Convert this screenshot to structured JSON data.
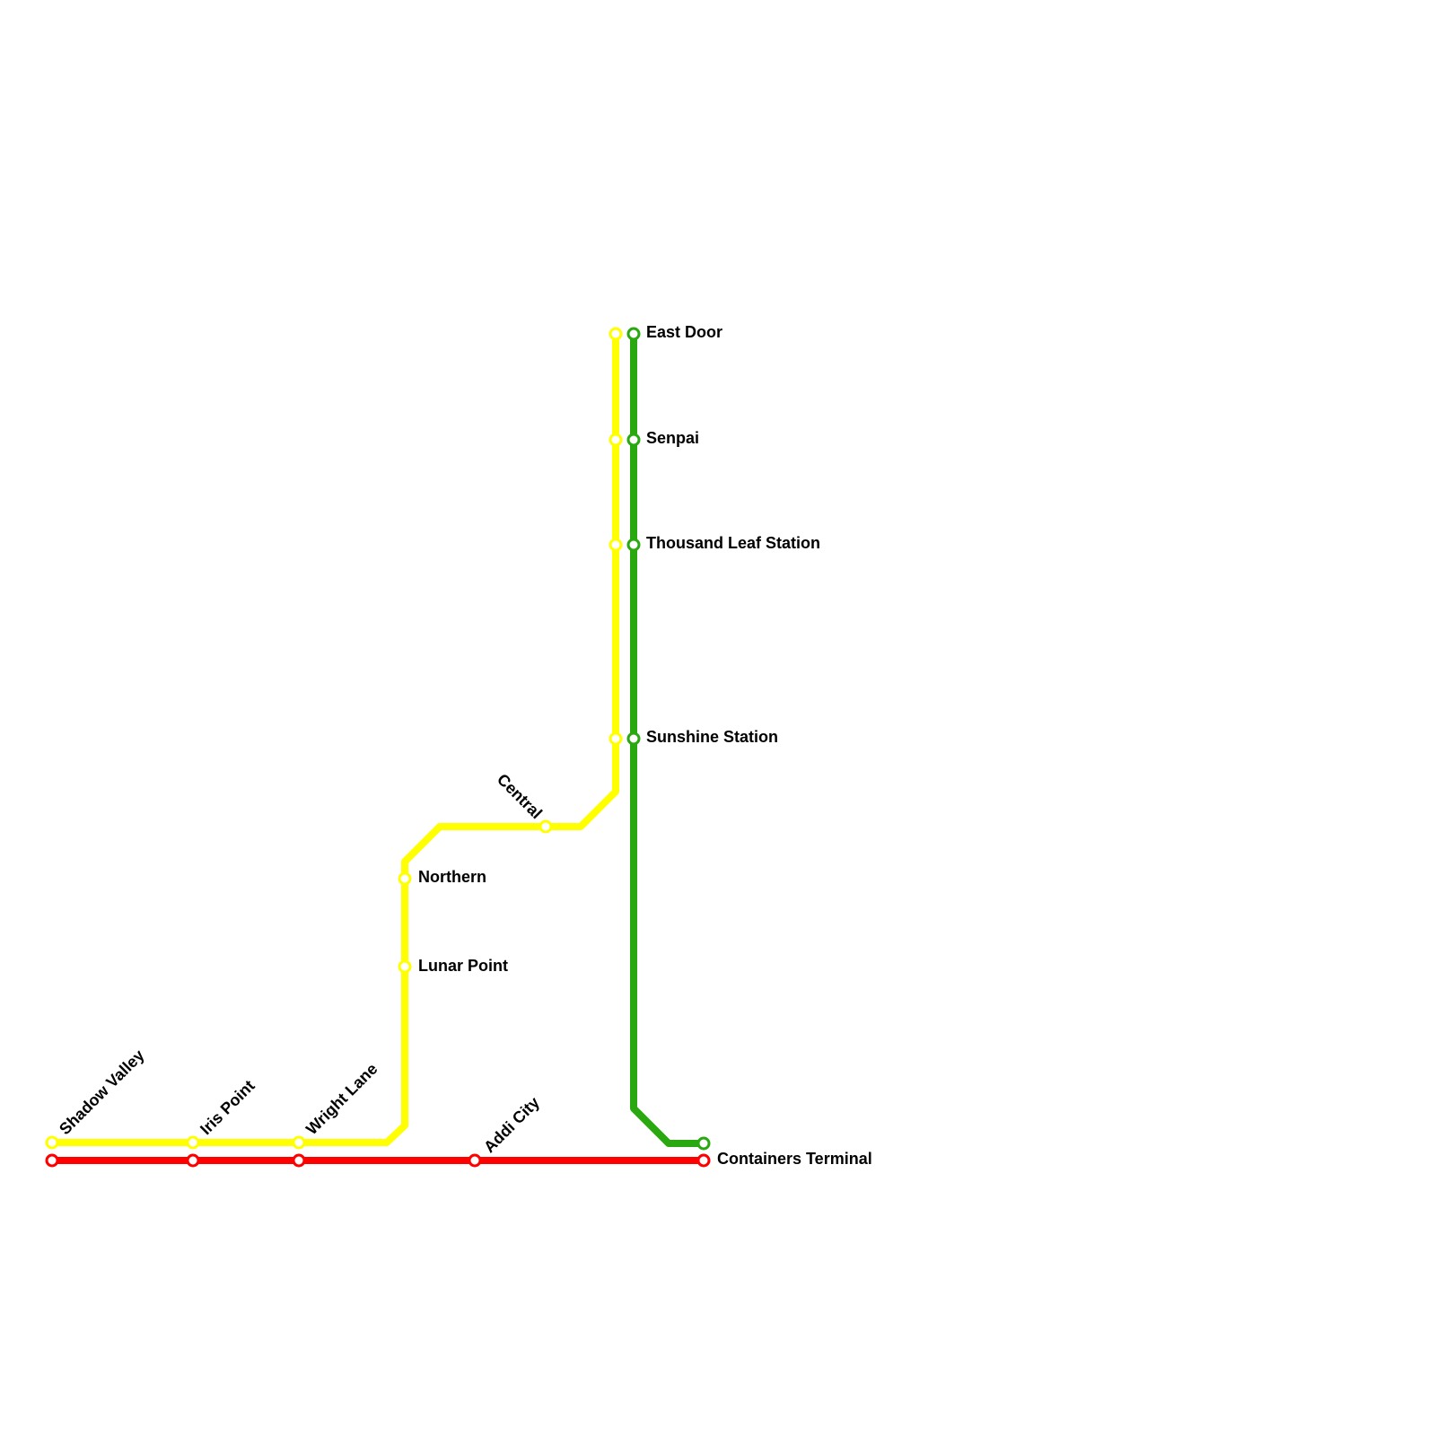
{
  "stations": [
    "East Door",
    "Senpai",
    "Thousand Leaf Station",
    "Sunshine Station",
    "Central",
    "Northern",
    "Lunar Point",
    "Shadow Valley",
    "Iris Point",
    "Wright Lane",
    "Addi City",
    "Containers Terminal"
  ]
}
